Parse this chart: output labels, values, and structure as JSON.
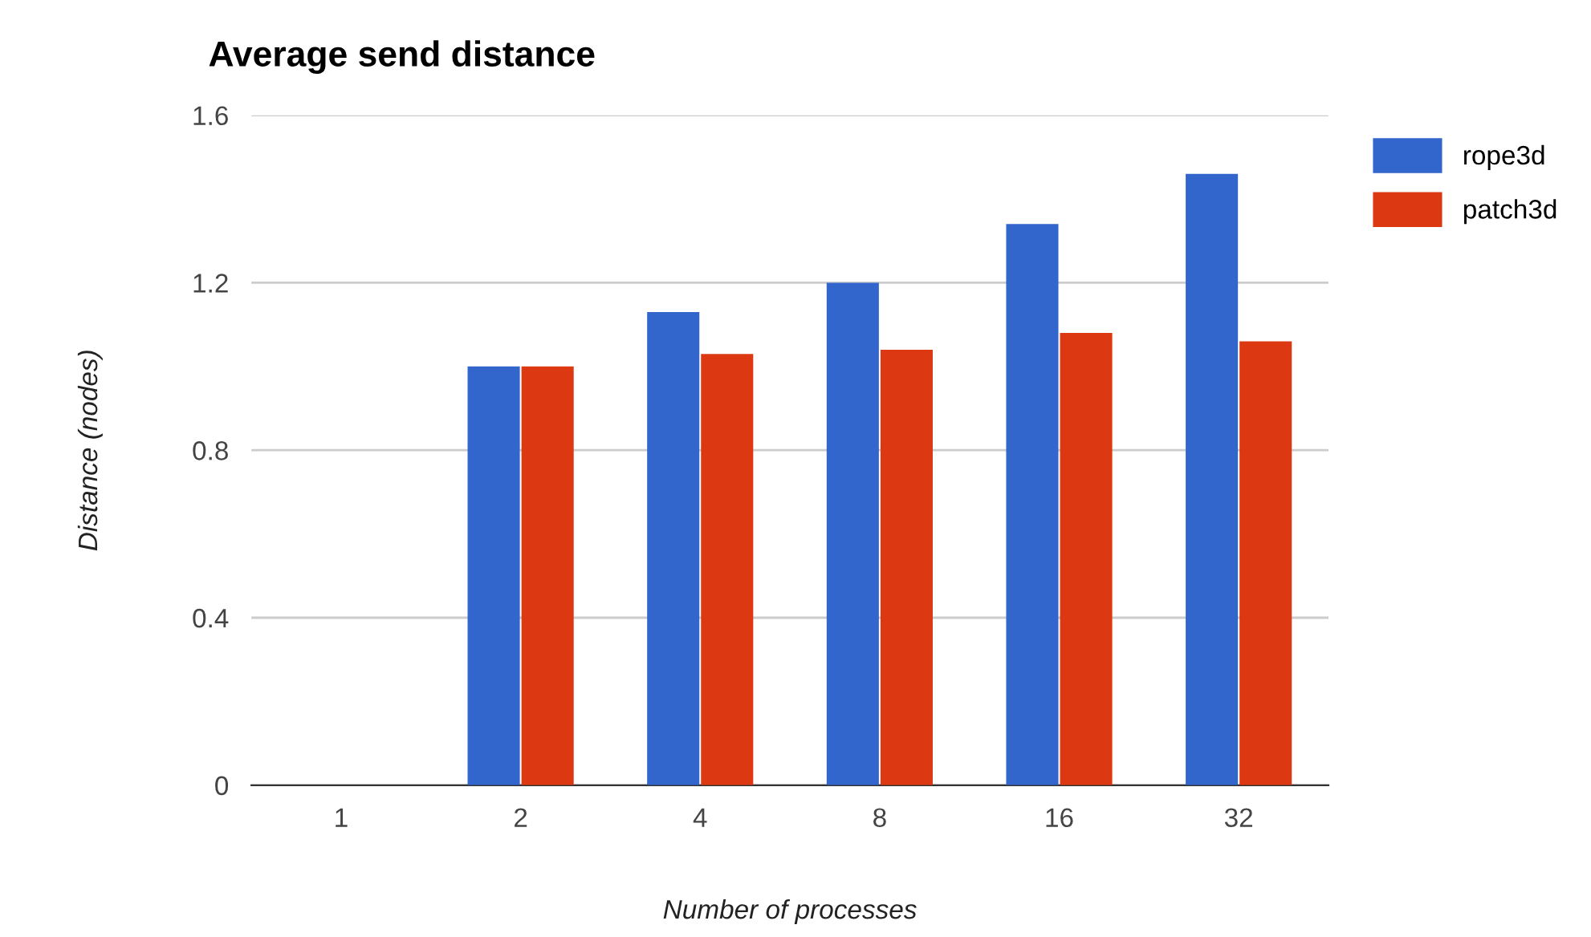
{
  "chart_data": {
    "type": "bar",
    "title": "Average send distance",
    "xlabel": "Number of processes",
    "ylabel": "Distance (nodes)",
    "categories": [
      "1",
      "2",
      "4",
      "8",
      "16",
      "32"
    ],
    "series": [
      {
        "name": "rope3d",
        "color": "#3366cc",
        "values": [
          null,
          1.0,
          1.13,
          1.2,
          1.34,
          1.46
        ]
      },
      {
        "name": "patch3d",
        "color": "#dc3912",
        "values": [
          null,
          1.0,
          1.03,
          1.04,
          1.08,
          1.06
        ]
      }
    ],
    "ylim": [
      0,
      1.6
    ],
    "yticks": [
      0,
      0.4,
      0.8,
      1.2,
      1.6
    ],
    "grid": "y",
    "legend": "top right"
  }
}
